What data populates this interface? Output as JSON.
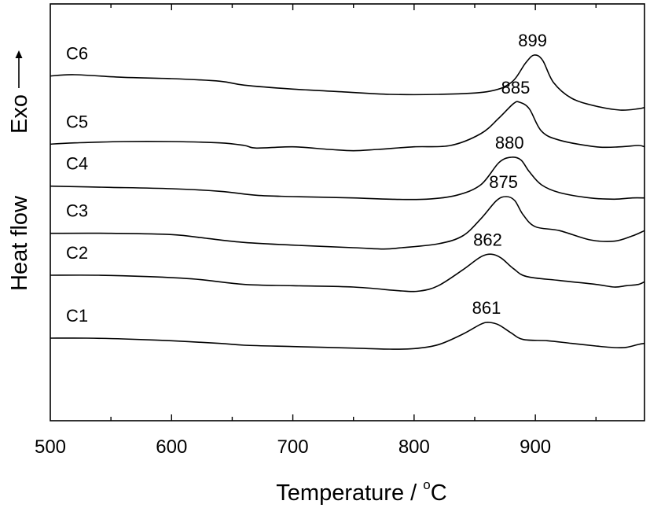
{
  "chart_data": {
    "type": "line",
    "xlabel": "Temperature / ",
    "xlabel_unit_sup": "o",
    "xlabel_unit": "C",
    "ylabel": "Heat flow",
    "ylabel_exo": "Exo",
    "xlim": [
      500,
      990
    ],
    "x_ticks": [
      500,
      600,
      700,
      800,
      900
    ],
    "y_ticks_shown": false,
    "grid": false,
    "series": [
      {
        "name": "C1",
        "peak": 861,
        "points": [
          [
            500,
            0.7
          ],
          [
            530,
            0.7
          ],
          [
            560,
            0.69
          ],
          [
            600,
            0.667
          ],
          [
            640,
            0.633
          ],
          [
            660,
            0.61
          ],
          [
            700,
            0.593
          ],
          [
            750,
            0.573
          ],
          [
            780,
            0.56
          ],
          [
            800,
            0.567
          ],
          [
            820,
            0.617
          ],
          [
            840,
            0.75
          ],
          [
            855,
            0.877
          ],
          [
            862,
            0.9
          ],
          [
            870,
            0.867
          ],
          [
            880,
            0.767
          ],
          [
            890,
            0.683
          ],
          [
            910,
            0.667
          ],
          [
            930,
            0.633
          ],
          [
            950,
            0.6
          ],
          [
            965,
            0.58
          ],
          [
            975,
            0.583
          ],
          [
            985,
            0.62
          ],
          [
            990,
            0.633
          ]
        ]
      },
      {
        "name": "C2",
        "peak": 862,
        "points": [
          [
            500,
            1.5
          ],
          [
            540,
            1.5
          ],
          [
            580,
            1.483
          ],
          [
            620,
            1.45
          ],
          [
            660,
            1.383
          ],
          [
            700,
            1.367
          ],
          [
            750,
            1.35
          ],
          [
            790,
            1.3
          ],
          [
            805,
            1.3
          ],
          [
            820,
            1.367
          ],
          [
            840,
            1.567
          ],
          [
            855,
            1.733
          ],
          [
            864,
            1.767
          ],
          [
            872,
            1.717
          ],
          [
            882,
            1.583
          ],
          [
            893,
            1.483
          ],
          [
            920,
            1.433
          ],
          [
            950,
            1.383
          ],
          [
            965,
            1.35
          ],
          [
            975,
            1.367
          ],
          [
            985,
            1.383
          ],
          [
            990,
            1.417
          ]
        ]
      },
      {
        "name": "C3",
        "peak": 875,
        "points": [
          [
            500,
            2.033
          ],
          [
            550,
            2.033
          ],
          [
            600,
            2.017
          ],
          [
            630,
            1.967
          ],
          [
            660,
            1.917
          ],
          [
            700,
            1.883
          ],
          [
            750,
            1.85
          ],
          [
            775,
            1.833
          ],
          [
            790,
            1.85
          ],
          [
            820,
            1.9
          ],
          [
            840,
            2.0
          ],
          [
            855,
            2.217
          ],
          [
            868,
            2.45
          ],
          [
            876,
            2.5
          ],
          [
            883,
            2.45
          ],
          [
            890,
            2.267
          ],
          [
            900,
            2.117
          ],
          [
            920,
            2.067
          ],
          [
            945,
            1.95
          ],
          [
            965,
            1.933
          ],
          [
            980,
            2.0
          ],
          [
            990,
            2.067
          ]
        ]
      },
      {
        "name": "C4",
        "peak": 880,
        "points": [
          [
            500,
            2.633
          ],
          [
            550,
            2.617
          ],
          [
            600,
            2.6
          ],
          [
            640,
            2.567
          ],
          [
            670,
            2.517
          ],
          [
            700,
            2.5
          ],
          [
            750,
            2.483
          ],
          [
            780,
            2.467
          ],
          [
            810,
            2.467
          ],
          [
            835,
            2.517
          ],
          [
            855,
            2.65
          ],
          [
            870,
            2.933
          ],
          [
            880,
            3.0
          ],
          [
            888,
            2.967
          ],
          [
            895,
            2.817
          ],
          [
            905,
            2.65
          ],
          [
            920,
            2.55
          ],
          [
            945,
            2.483
          ],
          [
            965,
            2.467
          ],
          [
            980,
            2.483
          ],
          [
            990,
            2.483
          ]
        ]
      },
      {
        "name": "C5",
        "peak": 885,
        "points": [
          [
            500,
            3.167
          ],
          [
            520,
            3.183
          ],
          [
            560,
            3.2
          ],
          [
            600,
            3.2
          ],
          [
            640,
            3.183
          ],
          [
            660,
            3.15
          ],
          [
            670,
            3.117
          ],
          [
            700,
            3.133
          ],
          [
            730,
            3.1
          ],
          [
            750,
            3.083
          ],
          [
            770,
            3.1
          ],
          [
            800,
            3.133
          ],
          [
            830,
            3.15
          ],
          [
            855,
            3.3
          ],
          [
            870,
            3.5
          ],
          [
            882,
            3.683
          ],
          [
            887,
            3.7
          ],
          [
            895,
            3.617
          ],
          [
            905,
            3.333
          ],
          [
            920,
            3.217
          ],
          [
            950,
            3.133
          ],
          [
            970,
            3.133
          ],
          [
            985,
            3.15
          ],
          [
            990,
            3.133
          ]
        ]
      },
      {
        "name": "C6",
        "peak": 899,
        "points": [
          [
            500,
            4.033
          ],
          [
            520,
            4.05
          ],
          [
            560,
            4.017
          ],
          [
            600,
            4.0
          ],
          [
            640,
            3.967
          ],
          [
            660,
            3.917
          ],
          [
            700,
            3.867
          ],
          [
            740,
            3.833
          ],
          [
            780,
            3.8
          ],
          [
            820,
            3.8
          ],
          [
            860,
            3.833
          ],
          [
            880,
            3.95
          ],
          [
            892,
            4.2
          ],
          [
            899,
            4.3
          ],
          [
            906,
            4.233
          ],
          [
            915,
            3.95
          ],
          [
            930,
            3.75
          ],
          [
            950,
            3.65
          ],
          [
            970,
            3.6
          ],
          [
            985,
            3.617
          ],
          [
            990,
            3.633
          ]
        ]
      }
    ]
  }
}
